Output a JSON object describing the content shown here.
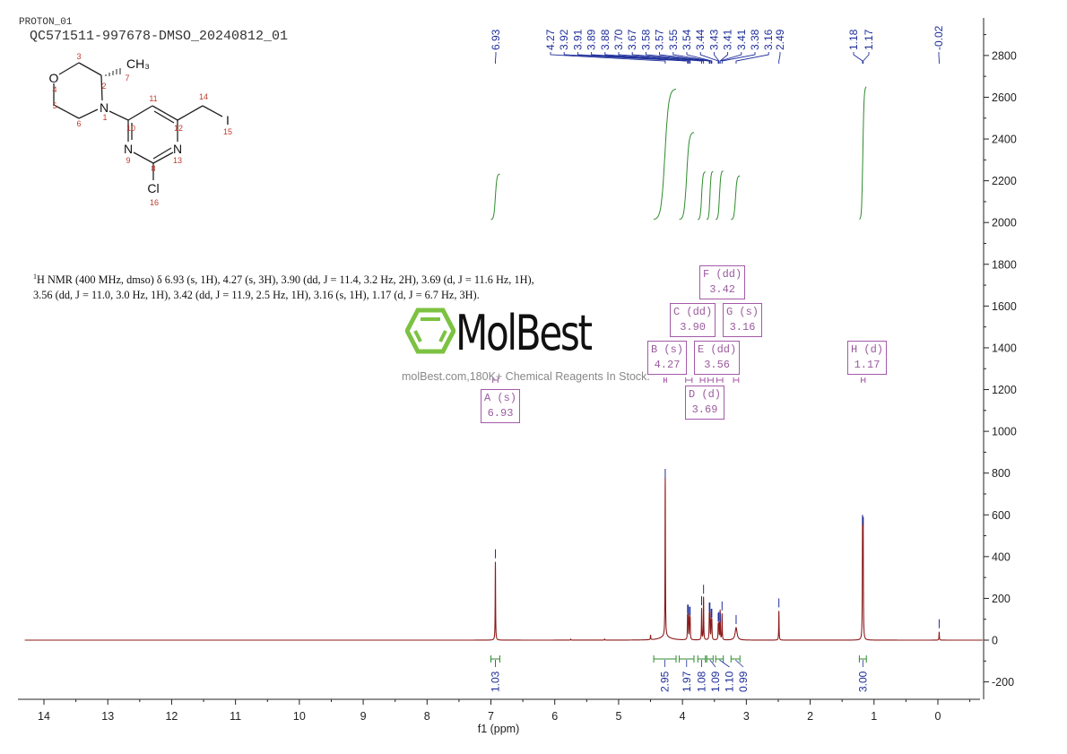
{
  "header": {
    "experiment": "PROTON_01",
    "sample": "QC571511-997678-DMSO_20240812_01"
  },
  "structure": {
    "atoms": {
      "O": "O",
      "N1": "N",
      "CH3": "CH₃",
      "N9": "N",
      "N13": "N",
      "Cl": "Cl",
      "I": "I"
    },
    "numbers": [
      "1",
      "2",
      "3",
      "4",
      "5",
      "6",
      "7",
      "8",
      "9",
      "10",
      "11",
      "12",
      "13",
      "14",
      "15",
      "16"
    ]
  },
  "nmr_text": {
    "sup": "1",
    "body": "H NMR (400 MHz, dmso) δ 6.93 (s, 1H), 4.27 (s, 3H), 3.90 (dd, J = 11.4, 3.2 Hz, 2H), 3.69 (d, J = 11.6 Hz, 1H), 3.56 (dd, J = 11.0, 3.0 Hz, 1H), 3.42 (dd, J = 11.9, 2.5 Hz, 1H), 3.16 (s, 1H), 1.17 (d, J = 6.7 Hz, 3H)."
  },
  "multiplets": [
    {
      "id": "A",
      "type": "(s)",
      "shift": "6.93"
    },
    {
      "id": "B",
      "type": "(s)",
      "shift": "4.27"
    },
    {
      "id": "C",
      "type": "(dd)",
      "shift": "3.90"
    },
    {
      "id": "D",
      "type": "(d)",
      "shift": "3.69"
    },
    {
      "id": "E",
      "type": "(dd)",
      "shift": "3.56"
    },
    {
      "id": "F",
      "type": "(dd)",
      "shift": "3.42"
    },
    {
      "id": "G",
      "type": "(s)",
      "shift": "3.16"
    },
    {
      "id": "H",
      "type": "(d)",
      "shift": "1.17"
    }
  ],
  "watermark": {
    "logo": "MolBest",
    "tagline": "molBest.com,180K+ Chemical Reagents In Stock."
  },
  "colors": {
    "spectrum": "#8b1a1a",
    "peak_labels": "#1f2f9a",
    "integrals": "#2e8b2e",
    "multiplet_boxes": "#a45aa8",
    "logo_green": "#7cc242"
  },
  "chart_data": {
    "type": "line",
    "xlabel": "f1 (ppm)",
    "xlim": [
      14.3,
      -0.65
    ],
    "ylim": [
      -283,
      2980
    ],
    "x_reversed": true,
    "xticks": [
      14,
      13,
      12,
      11,
      10,
      9,
      8,
      7,
      6,
      5,
      4,
      3,
      2,
      1,
      0
    ],
    "yticks": [
      -200,
      0,
      200,
      400,
      600,
      800,
      1000,
      1200,
      1400,
      1600,
      1800,
      2000,
      2200,
      2400,
      2600,
      2800
    ],
    "grid": false,
    "peaks": [
      {
        "ppm": 6.93,
        "label": "6.93",
        "height": 375
      },
      {
        "ppm": 4.27,
        "label": "4.27",
        "height": 760
      },
      {
        "ppm": 3.92,
        "label": "3.92",
        "height": 110
      },
      {
        "ppm": 3.91,
        "label": "3.91",
        "height": 110
      },
      {
        "ppm": 3.89,
        "label": "3.89",
        "height": 100
      },
      {
        "ppm": 3.88,
        "label": "3.88",
        "height": 100
      },
      {
        "ppm": 3.7,
        "label": "3.70",
        "height": 150
      },
      {
        "ppm": 3.67,
        "label": "3.67",
        "height": 205
      },
      {
        "ppm": 3.58,
        "label": "3.58",
        "height": 120
      },
      {
        "ppm": 3.57,
        "label": "3.57",
        "height": 120
      },
      {
        "ppm": 3.55,
        "label": "3.55",
        "height": 90
      },
      {
        "ppm": 3.54,
        "label": "3.54",
        "height": 90
      },
      {
        "ppm": 3.44,
        "label": "3.44",
        "height": 70
      },
      {
        "ppm": 3.43,
        "label": "3.43",
        "height": 75
      },
      {
        "ppm": 3.41,
        "label": "3.41",
        "height": 70
      },
      {
        "ppm": 3.41,
        "label": "3.41",
        "height": 70
      },
      {
        "ppm": 3.38,
        "label": "3.38",
        "height": 125
      },
      {
        "ppm": 3.16,
        "label": "3.16",
        "height": 60,
        "broad": true
      },
      {
        "ppm": 2.49,
        "label": "2.49",
        "height": 140
      },
      {
        "ppm": 1.18,
        "label": "1.18",
        "height": 540
      },
      {
        "ppm": 1.17,
        "label": "1.17",
        "height": 530
      },
      {
        "ppm": -0.02,
        "label": "-0.02",
        "height": 40
      }
    ],
    "minor_peaks": [
      {
        "ppm": 4.5,
        "height": 22
      },
      {
        "ppm": 5.75,
        "height": 5
      },
      {
        "ppm": 5.22,
        "height": 5
      }
    ],
    "integrals": [
      {
        "from": 7.0,
        "to": 6.86,
        "value": "1.03"
      },
      {
        "from": 4.45,
        "to": 4.1,
        "value": "2.95"
      },
      {
        "from": 4.05,
        "to": 3.82,
        "value": "1.97"
      },
      {
        "from": 3.76,
        "to": 3.64,
        "value": "1.08"
      },
      {
        "from": 3.62,
        "to": 3.52,
        "value": "1.09"
      },
      {
        "from": 3.48,
        "to": 3.36,
        "value": "1.10"
      },
      {
        "from": 3.24,
        "to": 3.1,
        "value": "0.99"
      },
      {
        "from": 1.23,
        "to": 1.12,
        "value": "3.00"
      }
    ]
  }
}
